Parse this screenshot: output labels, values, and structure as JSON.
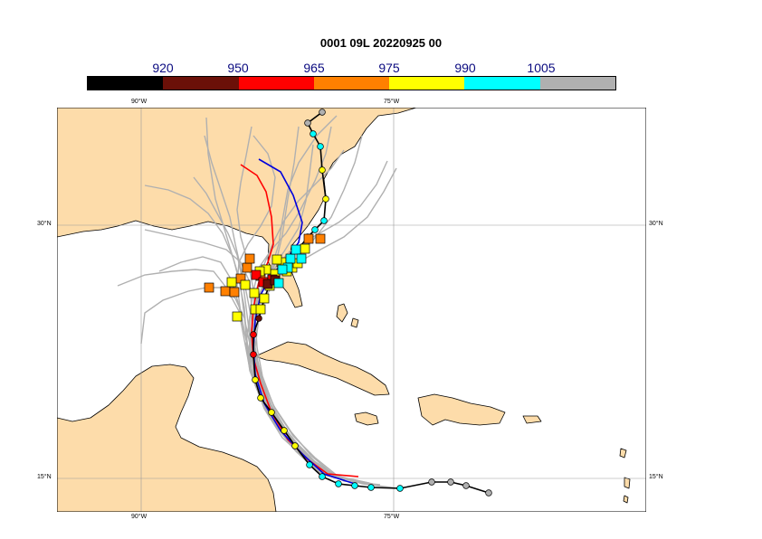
{
  "title": "0001 09L 20220925 00",
  "colorbar": {
    "segments": [
      {
        "color": "#000000"
      },
      {
        "color": "#6b1008"
      },
      {
        "color": "#ff0000"
      },
      {
        "color": "#ff8000"
      },
      {
        "color": "#ffff00"
      },
      {
        "color": "#00ffff"
      },
      {
        "color": "#b0b0b0"
      }
    ],
    "labels": [
      "920",
      "950",
      "965",
      "975",
      "990",
      "1005"
    ]
  },
  "axes": {
    "lon_top": [
      "90°W",
      "75°W"
    ],
    "lon_bottom": [
      "90°W",
      "75°W"
    ],
    "lat_left": [
      "30°N",
      "15°N"
    ],
    "lat_right": [
      "30°N",
      "15°N"
    ]
  },
  "colors": {
    "land": "#fddcaa",
    "ocean": "#ffffff",
    "ensemble": "#b0b0b0",
    "track_red": "#ff0000",
    "track_blue": "#0000dd",
    "track_main": "#000000",
    "grid": "#999999"
  }
}
